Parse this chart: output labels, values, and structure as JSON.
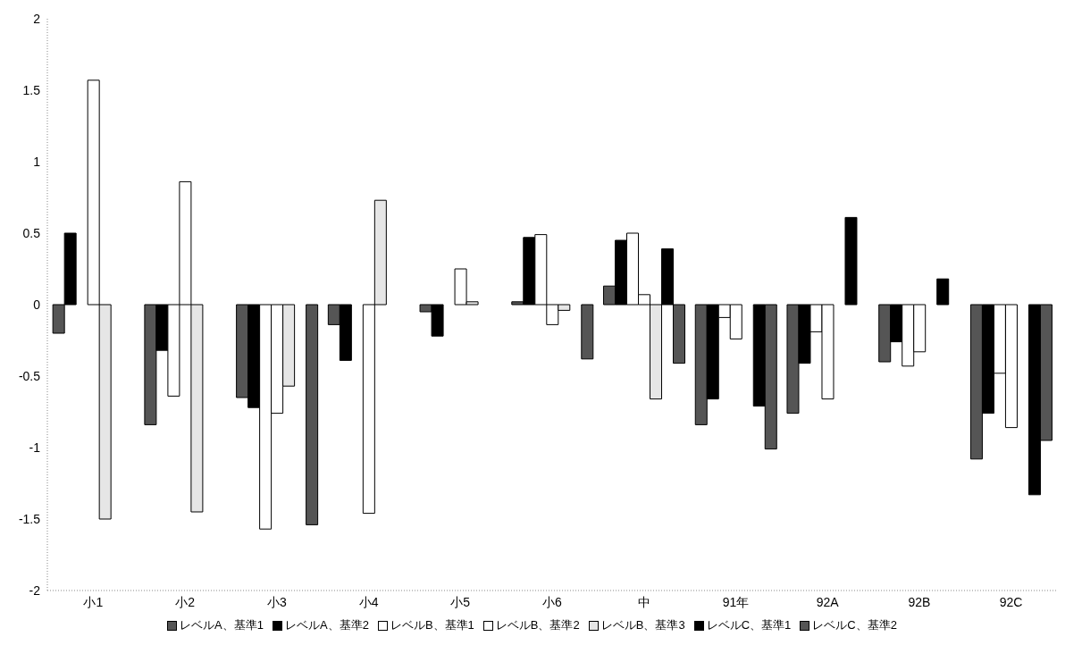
{
  "chart_data": {
    "type": "bar",
    "categories": [
      "小1",
      "小2",
      "小3",
      "小4",
      "小5",
      "小6",
      "中",
      "91年",
      "92A",
      "92B",
      "92C"
    ],
    "series": [
      {
        "name": "レベルA、基準1",
        "color": "#555555",
        "values": [
          -0.2,
          -0.84,
          -0.65,
          -0.14,
          -0.05,
          0.02,
          0.13,
          -0.84,
          -0.76,
          -0.4,
          -1.08
        ]
      },
      {
        "name": "レベルA、基準2",
        "color": "#000000",
        "values": [
          0.5,
          -0.32,
          -0.72,
          -0.39,
          -0.22,
          0.47,
          0.45,
          -0.66,
          -0.41,
          -0.26,
          -0.76
        ]
      },
      {
        "name": "レベルB、基準1",
        "color": "#ffffff",
        "values": [
          null,
          -0.64,
          -1.57,
          null,
          null,
          0.49,
          0.5,
          -0.09,
          -0.19,
          -0.43,
          -0.48
        ]
      },
      {
        "name": "レベルB、基準2",
        "color": "#ffffff",
        "values": [
          1.57,
          0.86,
          -0.76,
          -1.46,
          0.25,
          -0.14,
          0.07,
          -0.24,
          -0.66,
          -0.33,
          -0.86
        ]
      },
      {
        "name": "レベルB、基準3",
        "color": "#e6e6e6",
        "values": [
          -1.5,
          -1.45,
          -0.57,
          0.73,
          0.02,
          -0.04,
          -0.66,
          null,
          null,
          null,
          null
        ]
      },
      {
        "name": "レベルC、基準1",
        "color": "#000000",
        "values": [
          null,
          null,
          null,
          null,
          null,
          null,
          0.39,
          -0.71,
          0.61,
          0.18,
          -1.33
        ]
      },
      {
        "name": "レベルC、基準2",
        "color": "#555555",
        "values": [
          null,
          null,
          -1.54,
          null,
          null,
          -0.38,
          -0.41,
          -1.01,
          null,
          null,
          -0.95
        ]
      }
    ],
    "ylim": [
      -2,
      2
    ],
    "yticks": [
      -2,
      -1.5,
      -1,
      -0.5,
      0,
      0.5,
      1,
      1.5,
      2
    ],
    "grid": false,
    "legend": "bottom"
  }
}
